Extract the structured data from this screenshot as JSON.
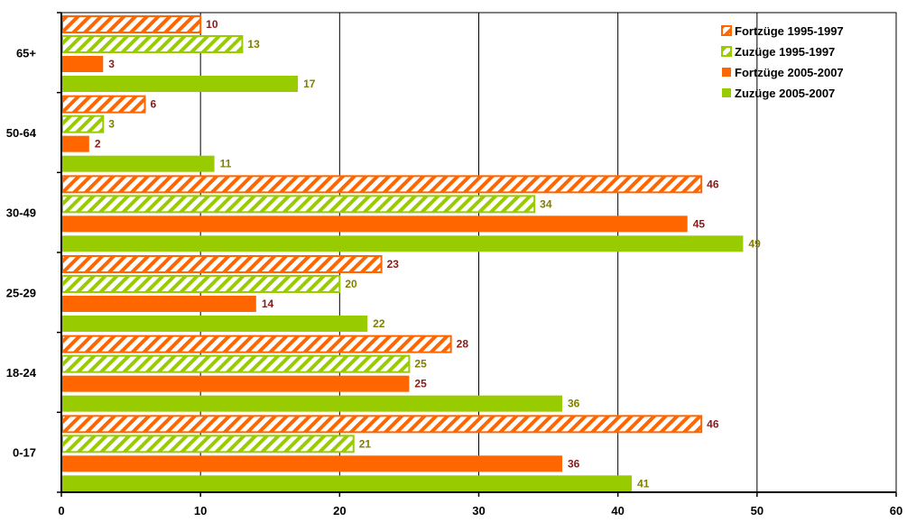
{
  "chart_data": {
    "type": "bar",
    "orientation": "horizontal",
    "title": "",
    "xlabel": "",
    "ylabel": "",
    "categories": [
      "0-17",
      "18-24",
      "25-29",
      "30-49",
      "50-64",
      "65+"
    ],
    "series": [
      {
        "name": "Fortzüge 1995-1997",
        "values": [
          46,
          28,
          23,
          46,
          6,
          10
        ],
        "color": "#ff6600",
        "pattern": "hatched",
        "label_color": "#8b1a1a"
      },
      {
        "name": "Zuzüge 1995-1997",
        "values": [
          21,
          25,
          20,
          34,
          3,
          13
        ],
        "color": "#99cc00",
        "pattern": "hatched",
        "label_color": "#808000"
      },
      {
        "name": "Fortzüge 2005-2007",
        "values": [
          36,
          25,
          14,
          45,
          2,
          3
        ],
        "color": "#ff6600",
        "pattern": "solid",
        "label_color": "#8b1a1a"
      },
      {
        "name": "Zuzüge 2005-2007",
        "values": [
          41,
          36,
          22,
          49,
          11,
          17
        ],
        "color": "#99cc00",
        "pattern": "solid",
        "label_color": "#808000"
      }
    ],
    "xlim": [
      0,
      60
    ],
    "xticks": [
      "0",
      "10",
      "20",
      "30",
      "40",
      "50",
      "60"
    ],
    "grid": "vertical",
    "legend_position": "top-right"
  }
}
